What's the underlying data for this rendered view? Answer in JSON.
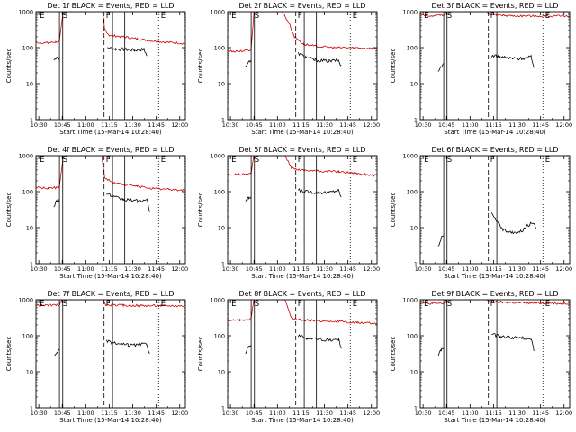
{
  "figure": {
    "x_tick_labels": [
      "10:30",
      "10:45",
      "11:00",
      "11:15",
      "11:30",
      "11:45",
      "12:00"
    ],
    "y_tick_labels": [
      "1",
      "10",
      "100",
      "1000"
    ],
    "y_axis_label": "Counts/sec",
    "x_axis_label": "Start Time (15-Mar-14 10:28:40)",
    "marker_labels": [
      "E",
      "S",
      "F",
      "E"
    ]
  },
  "chart_data": [
    {
      "type": "line",
      "title": "Det 1f BLACK = Events, RED = LLD",
      "xlabel": "Start Time (15-Mar-14 10:28:40)",
      "ylabel": "Counts/sec",
      "xlim": [
        10.47,
        12.06
      ],
      "ylim": [
        1,
        1000
      ],
      "yscale": "log",
      "series": [
        {
          "name": "Events",
          "color": "#000000",
          "points": [
            [
              10.66,
              45
            ],
            [
              10.69,
              55
            ],
            [
              10.72,
              50
            ],
            [
              10.75,
              0
            ],
            [
              11.23,
              100
            ],
            [
              11.32,
              92
            ],
            [
              11.45,
              88
            ],
            [
              11.52,
              85
            ],
            [
              11.62,
              90
            ],
            [
              11.65,
              60
            ]
          ]
        },
        {
          "name": "LLD",
          "color": "#cc0000",
          "points": [
            [
              10.47,
              140
            ],
            [
              10.6,
              135
            ],
            [
              10.68,
              145
            ],
            [
              10.72,
              150
            ],
            [
              10.76,
              1000
            ],
            [
              11.18,
              1000
            ],
            [
              11.2,
              330
            ],
            [
              11.25,
              220
            ],
            [
              11.4,
              200
            ],
            [
              11.55,
              175
            ],
            [
              11.75,
              150
            ],
            [
              12.06,
              130
            ]
          ]
        }
      ],
      "solid_lines": [
        10.72,
        10.755,
        11.285,
        11.415
      ],
      "dashed_lines": [
        11.195
      ],
      "dotted_lines": [
        11.775
      ]
    },
    {
      "type": "line",
      "title": "Det 2f BLACK = Events, RED = LLD",
      "xlabel": "Start Time (15-Mar-14 10:28:40)",
      "ylabel": "Counts/sec",
      "xlim": [
        10.47,
        12.06
      ],
      "ylim": [
        1,
        1000
      ],
      "yscale": "log",
      "series": [
        {
          "name": "Events",
          "color": "#000000",
          "points": [
            [
              10.66,
              30
            ],
            [
              10.69,
              40
            ],
            [
              10.72,
              42
            ],
            [
              10.75,
              0
            ],
            [
              11.22,
              70
            ],
            [
              11.3,
              55
            ],
            [
              11.4,
              45
            ],
            [
              11.55,
              42
            ],
            [
              11.65,
              45
            ],
            [
              11.68,
              30
            ]
          ]
        },
        {
          "name": "LLD",
          "color": "#cc0000",
          "points": [
            [
              10.47,
              80
            ],
            [
              10.6,
              80
            ],
            [
              10.7,
              85
            ],
            [
              10.72,
              90
            ],
            [
              10.75,
              1000
            ],
            [
              11.05,
              1000
            ],
            [
              11.12,
              500
            ],
            [
              11.18,
              200
            ],
            [
              11.28,
              125
            ],
            [
              11.4,
              110
            ],
            [
              11.6,
              100
            ],
            [
              11.8,
              100
            ],
            [
              12.06,
              95
            ]
          ]
        }
      ],
      "solid_lines": [
        10.72,
        10.755,
        11.285,
        11.415
      ],
      "dashed_lines": [
        11.195
      ],
      "dotted_lines": [
        11.775
      ]
    },
    {
      "type": "line",
      "title": "Det 3f BLACK = Events, RED = LLD",
      "xlabel": "Start Time (15-Mar-14 10:28:40)",
      "ylabel": "Counts/sec",
      "xlim": [
        10.47,
        12.06
      ],
      "ylim": [
        1,
        1000
      ],
      "yscale": "log",
      "series": [
        {
          "name": "Events",
          "color": "#000000",
          "points": [
            [
              10.66,
              20
            ],
            [
              10.69,
              30
            ],
            [
              10.72,
              35
            ],
            [
              10.75,
              0
            ],
            [
              11.23,
              60
            ],
            [
              11.32,
              55
            ],
            [
              11.45,
              50
            ],
            [
              11.55,
              50
            ],
            [
              11.65,
              55
            ],
            [
              11.68,
              30
            ]
          ]
        },
        {
          "name": "LLD",
          "color": "#cc0000",
          "points": [
            [
              10.47,
              800
            ],
            [
              10.6,
              780
            ],
            [
              10.72,
              800
            ],
            [
              10.75,
              1000
            ],
            [
              11.18,
              1000
            ],
            [
              11.21,
              850
            ],
            [
              11.4,
              780
            ],
            [
              11.6,
              760
            ],
            [
              11.8,
              760
            ],
            [
              12.06,
              740
            ]
          ]
        }
      ],
      "solid_lines": [
        10.72,
        10.755,
        11.285
      ],
      "dashed_lines": [
        11.195
      ],
      "dotted_lines": [
        11.775
      ]
    },
    {
      "type": "line",
      "title": "Det 4f BLACK = Events, RED = LLD",
      "xlabel": "Start Time (15-Mar-14 10:28:40)",
      "ylabel": "Counts/sec",
      "xlim": [
        10.47,
        12.06
      ],
      "ylim": [
        1,
        1000
      ],
      "yscale": "log",
      "series": [
        {
          "name": "Events",
          "color": "#000000",
          "points": [
            [
              10.66,
              40
            ],
            [
              10.69,
              55
            ],
            [
              10.72,
              60
            ],
            [
              10.75,
              0
            ],
            [
              11.22,
              90
            ],
            [
              11.3,
              70
            ],
            [
              11.4,
              60
            ],
            [
              11.55,
              55
            ],
            [
              11.65,
              58
            ],
            [
              11.68,
              30
            ]
          ]
        },
        {
          "name": "LLD",
          "color": "#cc0000",
          "points": [
            [
              10.47,
              130
            ],
            [
              10.6,
              125
            ],
            [
              10.7,
              130
            ],
            [
              10.72,
              140
            ],
            [
              10.76,
              1000
            ],
            [
              11.17,
              1000
            ],
            [
              11.2,
              250
            ],
            [
              11.28,
              180
            ],
            [
              11.4,
              160
            ],
            [
              11.55,
              140
            ],
            [
              11.75,
              120
            ],
            [
              12.06,
              110
            ]
          ]
        }
      ],
      "solid_lines": [
        10.72,
        10.755,
        11.285,
        11.415
      ],
      "dashed_lines": [
        11.195
      ],
      "dotted_lines": [
        11.775
      ]
    },
    {
      "type": "line",
      "title": "Det 5f BLACK = Events, RED = LLD",
      "xlabel": "Start Time (15-Mar-14 10:28:40)",
      "ylabel": "Counts/sec",
      "xlim": [
        10.47,
        12.06
      ],
      "ylim": [
        1,
        1000
      ],
      "yscale": "log",
      "series": [
        {
          "name": "Events",
          "color": "#000000",
          "points": [
            [
              10.66,
              55
            ],
            [
              10.69,
              65
            ],
            [
              10.72,
              70
            ],
            [
              10.75,
              0
            ],
            [
              11.22,
              110
            ],
            [
              11.3,
              100
            ],
            [
              11.45,
              95
            ],
            [
              11.55,
              95
            ],
            [
              11.65,
              110
            ],
            [
              11.68,
              70
            ]
          ]
        },
        {
          "name": "LLD",
          "color": "#cc0000",
          "points": [
            [
              10.47,
              300
            ],
            [
              10.6,
              300
            ],
            [
              10.7,
              310
            ],
            [
              10.72,
              330
            ],
            [
              10.75,
              1000
            ],
            [
              11.08,
              1000
            ],
            [
              11.15,
              450
            ],
            [
              11.25,
              400
            ],
            [
              11.45,
              370
            ],
            [
              11.65,
              360
            ],
            [
              11.85,
              320
            ],
            [
              12.06,
              280
            ]
          ]
        }
      ],
      "solid_lines": [
        10.72,
        10.755,
        11.285,
        11.415
      ],
      "dashed_lines": [
        11.195
      ],
      "dotted_lines": [
        11.775
      ]
    },
    {
      "type": "line",
      "title": "Det 6f BLACK = Events, RED = LLD",
      "xlabel": "Start Time (15-Mar-14 10:28:40)",
      "ylabel": "Counts/sec",
      "xlim": [
        10.47,
        12.06
      ],
      "ylim": [
        1,
        1000
      ],
      "yscale": "log",
      "series": [
        {
          "name": "Events",
          "color": "#000000",
          "points": [
            [
              10.66,
              3
            ],
            [
              10.69,
              5
            ],
            [
              10.72,
              6
            ],
            [
              10.75,
              0
            ],
            [
              11.23,
              25
            ],
            [
              11.28,
              15
            ],
            [
              11.35,
              9
            ],
            [
              11.45,
              7
            ],
            [
              11.55,
              8
            ],
            [
              11.62,
              12
            ],
            [
              11.68,
              14
            ],
            [
              11.7,
              10
            ]
          ]
        }
      ],
      "solid_lines": [
        10.72,
        10.755,
        11.285
      ],
      "dashed_lines": [
        11.195
      ],
      "dotted_lines": [
        11.775
      ]
    },
    {
      "type": "line",
      "title": "Det 7f BLACK = Events, RED = LLD",
      "xlabel": "Start Time (15-Mar-14 10:28:40)",
      "ylabel": "Counts/sec",
      "xlim": [
        10.47,
        12.06
      ],
      "ylim": [
        1,
        1000
      ],
      "yscale": "log",
      "series": [
        {
          "name": "Events",
          "color": "#000000",
          "points": [
            [
              10.66,
              25
            ],
            [
              10.69,
              35
            ],
            [
              10.72,
              40
            ],
            [
              10.75,
              0
            ],
            [
              11.22,
              70
            ],
            [
              11.32,
              60
            ],
            [
              11.45,
              55
            ],
            [
              11.55,
              55
            ],
            [
              11.65,
              60
            ],
            [
              11.68,
              30
            ]
          ]
        },
        {
          "name": "LLD",
          "color": "#cc0000",
          "points": [
            [
              10.47,
              700
            ],
            [
              10.6,
              700
            ],
            [
              10.72,
              720
            ],
            [
              10.75,
              1000
            ],
            [
              11.18,
              1000
            ],
            [
              11.21,
              720
            ],
            [
              11.4,
              700
            ],
            [
              11.6,
              690
            ],
            [
              11.8,
              680
            ],
            [
              12.06,
              680
            ]
          ]
        }
      ],
      "solid_lines": [
        10.72,
        10.755,
        11.285
      ],
      "dashed_lines": [
        11.195
      ],
      "dotted_lines": [
        11.775
      ]
    },
    {
      "type": "line",
      "title": "Det 8f BLACK = Events, RED = LLD",
      "xlabel": "Start Time (15-Mar-14 10:28:40)",
      "ylabel": "Counts/sec",
      "xlim": [
        10.47,
        12.06
      ],
      "ylim": [
        1,
        1000
      ],
      "yscale": "log",
      "series": [
        {
          "name": "Events",
          "color": "#000000",
          "points": [
            [
              10.66,
              35
            ],
            [
              10.69,
              50
            ],
            [
              10.72,
              55
            ],
            [
              10.75,
              0
            ],
            [
              11.22,
              100
            ],
            [
              11.32,
              85
            ],
            [
              11.45,
              80
            ],
            [
              11.55,
              75
            ],
            [
              11.65,
              80
            ],
            [
              11.68,
              45
            ]
          ]
        },
        {
          "name": "LLD",
          "color": "#cc0000",
          "points": [
            [
              10.47,
              270
            ],
            [
              10.6,
              270
            ],
            [
              10.7,
              280
            ],
            [
              10.72,
              300
            ],
            [
              10.75,
              1000
            ],
            [
              11.08,
              1000
            ],
            [
              11.15,
              300
            ],
            [
              11.25,
              280
            ],
            [
              11.45,
              260
            ],
            [
              11.65,
              250
            ],
            [
              11.85,
              230
            ],
            [
              12.06,
              220
            ]
          ]
        }
      ],
      "solid_lines": [
        10.72,
        10.755,
        11.285,
        11.415
      ],
      "dashed_lines": [
        11.195
      ],
      "dotted_lines": [
        11.775
      ]
    },
    {
      "type": "line",
      "title": "Det 9f BLACK = Events, RED = LLD",
      "xlabel": "Start Time (15-Mar-14 10:28:40)",
      "ylabel": "Counts/sec",
      "xlim": [
        10.47,
        12.06
      ],
      "ylim": [
        1,
        1000
      ],
      "yscale": "log",
      "series": [
        {
          "name": "Events",
          "color": "#000000",
          "points": [
            [
              10.66,
              28
            ],
            [
              10.69,
              40
            ],
            [
              10.72,
              45
            ],
            [
              10.75,
              0
            ],
            [
              11.23,
              110
            ],
            [
              11.32,
              95
            ],
            [
              11.45,
              90
            ],
            [
              11.55,
              85
            ],
            [
              11.65,
              85
            ],
            [
              11.68,
              40
            ]
          ]
        },
        {
          "name": "LLD",
          "color": "#cc0000",
          "points": [
            [
              10.47,
              800
            ],
            [
              10.6,
              780
            ],
            [
              10.72,
              800
            ],
            [
              10.75,
              1000
            ],
            [
              11.18,
              1000
            ],
            [
              11.21,
              870
            ],
            [
              11.4,
              840
            ],
            [
              11.6,
              810
            ],
            [
              11.8,
              800
            ],
            [
              12.06,
              790
            ]
          ]
        }
      ],
      "solid_lines": [
        10.72,
        10.755,
        11.285
      ],
      "dashed_lines": [
        11.195
      ],
      "dotted_lines": [
        11.775
      ]
    }
  ]
}
